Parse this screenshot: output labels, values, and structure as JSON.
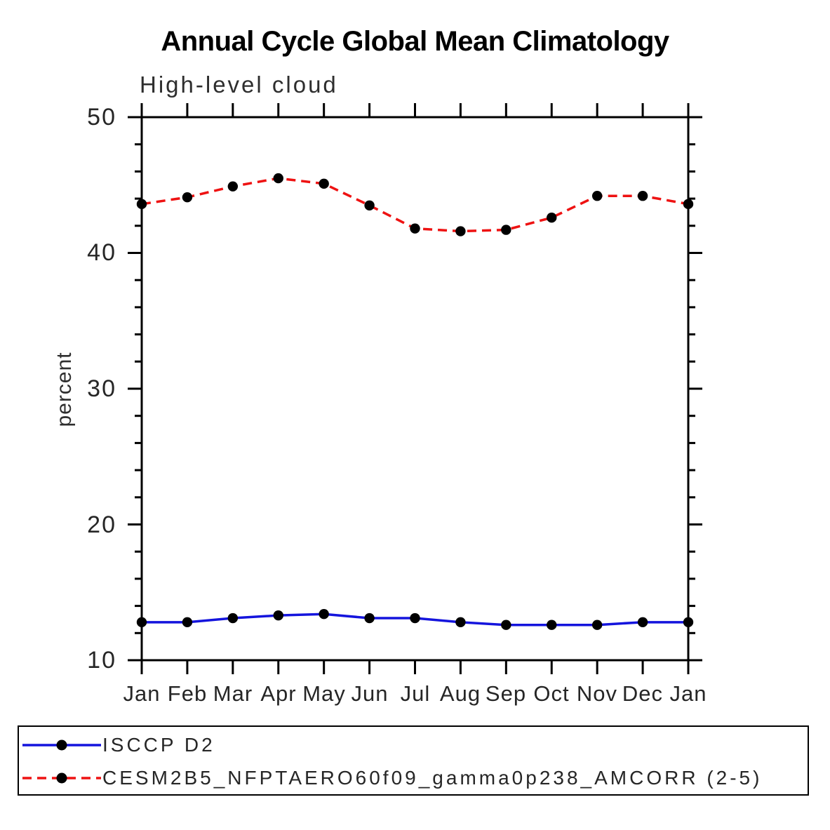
{
  "header": {
    "title": "Annual Cycle Global Mean Climatology",
    "subtitle": "High-level cloud"
  },
  "chart_data": {
    "type": "line",
    "title": "Annual Cycle Global Mean Climatology",
    "subtitle": "High-level cloud",
    "xlabel": "",
    "ylabel": "percent",
    "categories": [
      "Jan",
      "Feb",
      "Mar",
      "Apr",
      "May",
      "Jun",
      "Jul",
      "Aug",
      "Sep",
      "Oct",
      "Nov",
      "Dec",
      "Jan"
    ],
    "ylim": [
      10,
      50
    ],
    "y_major_ticks": [
      10,
      20,
      30,
      40,
      50
    ],
    "y_minor_tick_step": 2,
    "grid": "off",
    "legend_position": "bottom-left-box",
    "frame": "box-with-outward-ticks",
    "series": [
      {
        "name": "ISCCP D2",
        "color": "#1414dd",
        "line_style": "solid",
        "marker": "filled-circle",
        "marker_color": "#000000",
        "values": [
          12.8,
          12.8,
          13.1,
          13.3,
          13.4,
          13.1,
          13.1,
          12.8,
          12.6,
          12.6,
          12.6,
          12.8,
          12.8
        ]
      },
      {
        "name": "CESM2B5_NFPTAERO60f09_gamma0p238_AMCORR (2-5)",
        "color": "#ee1212",
        "line_style": "dashed",
        "marker": "filled-circle",
        "marker_color": "#000000",
        "values": [
          43.6,
          44.1,
          44.9,
          45.5,
          45.1,
          43.5,
          41.8,
          41.6,
          41.7,
          42.6,
          44.2,
          44.2,
          43.6
        ]
      }
    ]
  },
  "colors": {
    "axis": "#000000",
    "blue_series": "#1414dd",
    "red_series": "#ee1212",
    "marker": "#000000",
    "background": "#ffffff"
  }
}
